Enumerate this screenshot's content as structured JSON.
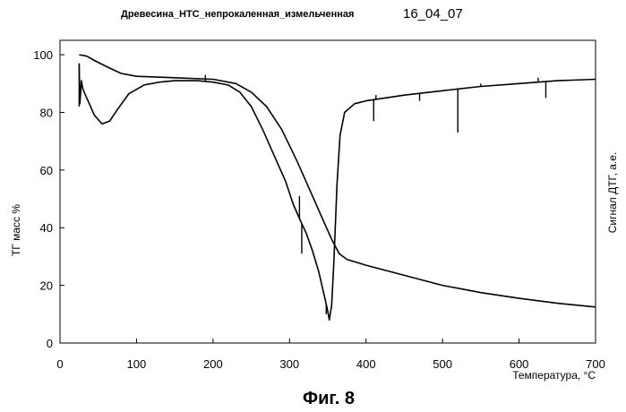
{
  "header": {
    "sample": "Древесина_НТС_непрокаленная_измельченная",
    "date": "16_04_07"
  },
  "caption": "Фиг. 8",
  "chart_data": {
    "type": "line",
    "xlabel": "Температура, °C",
    "ylabel": "ТГ масс %",
    "ylabel_right": "Сигнал ДТГ, а.е.",
    "xlim": [
      0,
      700
    ],
    "ylim": [
      0,
      105
    ],
    "x_ticks": [
      0,
      100,
      200,
      300,
      400,
      500,
      600,
      700
    ],
    "y_ticks": [
      0,
      20,
      40,
      60,
      80,
      100
    ],
    "grid": false,
    "series": [
      {
        "key": "tg",
        "points": [
          [
            25,
            100
          ],
          [
            35,
            99.5
          ],
          [
            45,
            98
          ],
          [
            60,
            96
          ],
          [
            80,
            93.5
          ],
          [
            100,
            92.5
          ],
          [
            150,
            92
          ],
          [
            200,
            91.5
          ],
          [
            230,
            90
          ],
          [
            250,
            87
          ],
          [
            270,
            82
          ],
          [
            290,
            74
          ],
          [
            310,
            63
          ],
          [
            330,
            51
          ],
          [
            345,
            42
          ],
          [
            355,
            36
          ],
          [
            365,
            31
          ],
          [
            375,
            29
          ],
          [
            400,
            27
          ],
          [
            450,
            23.5
          ],
          [
            500,
            20
          ],
          [
            550,
            17.5
          ],
          [
            600,
            15.5
          ],
          [
            650,
            13.8
          ],
          [
            700,
            12.5
          ]
        ]
      },
      {
        "key": "dtg",
        "points": [
          [
            25,
            97
          ],
          [
            26,
            83
          ],
          [
            28,
            91
          ],
          [
            30,
            88
          ],
          [
            35,
            85
          ],
          [
            45,
            79
          ],
          [
            55,
            76
          ],
          [
            65,
            77
          ],
          [
            75,
            81
          ],
          [
            90,
            86.5
          ],
          [
            110,
            89.5
          ],
          [
            130,
            90.5
          ],
          [
            150,
            91
          ],
          [
            180,
            91
          ],
          [
            200,
            90.5
          ],
          [
            220,
            89.5
          ],
          [
            235,
            87
          ],
          [
            250,
            82
          ],
          [
            265,
            74
          ],
          [
            280,
            65
          ],
          [
            295,
            56
          ],
          [
            305,
            48
          ],
          [
            315,
            42
          ],
          [
            322,
            38
          ],
          [
            330,
            32
          ],
          [
            338,
            25
          ],
          [
            345,
            17
          ],
          [
            350,
            11
          ],
          [
            352,
            8
          ],
          [
            355,
            13
          ],
          [
            358,
            28
          ],
          [
            362,
            55
          ],
          [
            366,
            72
          ],
          [
            372,
            80
          ],
          [
            385,
            83
          ],
          [
            400,
            84
          ],
          [
            450,
            86
          ],
          [
            500,
            87.5
          ],
          [
            550,
            89
          ],
          [
            600,
            90
          ],
          [
            650,
            91
          ],
          [
            700,
            91.5
          ]
        ],
        "spikes": [
          [
            25,
            82
          ],
          [
            190,
            93
          ],
          [
            313,
            51
          ],
          [
            316,
            31
          ],
          [
            348,
            10
          ],
          [
            410,
            77
          ],
          [
            413,
            86
          ],
          [
            470,
            84
          ],
          [
            520,
            73
          ],
          [
            550,
            90
          ],
          [
            625,
            92
          ],
          [
            635,
            85
          ]
        ]
      }
    ]
  }
}
